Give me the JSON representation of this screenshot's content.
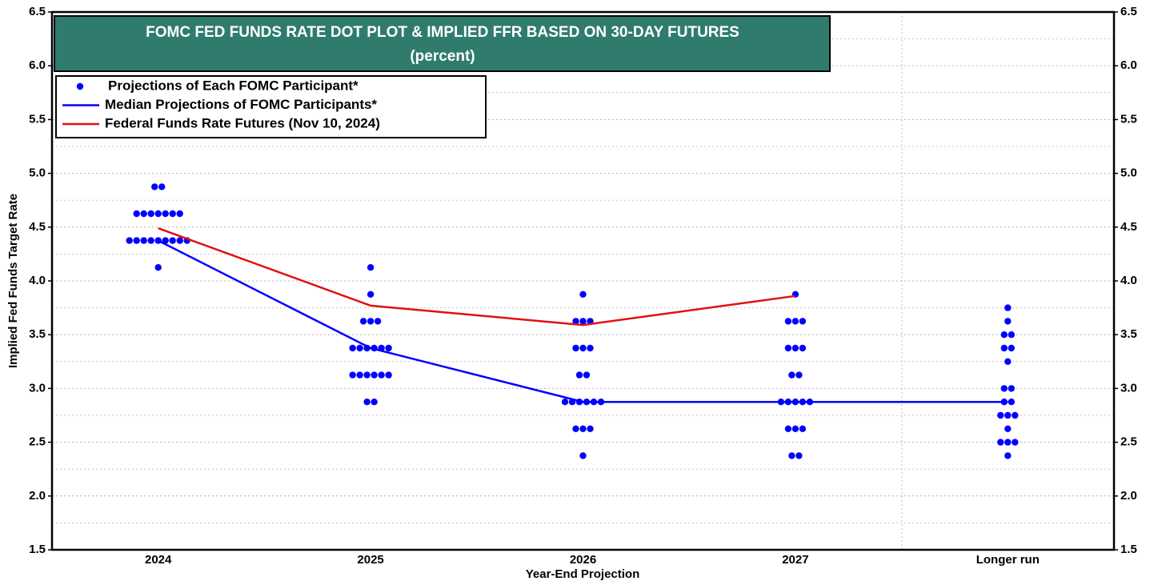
{
  "chart_data": {
    "type": "dot-plot",
    "title": "FOMC FED FUNDS RATE DOT PLOT & IMPLIED FFR BASED ON 30-DAY FUTURES",
    "subtitle": "(percent)",
    "xlabel": "Year-End Projection",
    "ylabel": "Implied Fed Funds Target Rate",
    "categories": [
      "2024",
      "2025",
      "2026",
      "2027",
      "Longer run"
    ],
    "series": [
      {
        "name": "Projections of Each FOMC Participant*",
        "type": "dots",
        "color": "#0000ff",
        "values": [
          [
            4.875,
            4.875,
            4.625,
            4.625,
            4.625,
            4.625,
            4.625,
            4.625,
            4.625,
            4.375,
            4.375,
            4.375,
            4.375,
            4.375,
            4.375,
            4.375,
            4.375,
            4.375,
            4.125
          ],
          [
            4.125,
            3.875,
            3.625,
            3.625,
            3.625,
            3.375,
            3.375,
            3.375,
            3.375,
            3.375,
            3.375,
            3.125,
            3.125,
            3.125,
            3.125,
            3.125,
            3.125,
            2.875,
            2.875
          ],
          [
            3.875,
            3.625,
            3.625,
            3.625,
            3.375,
            3.375,
            3.375,
            3.125,
            3.125,
            2.875,
            2.875,
            2.875,
            2.875,
            2.875,
            2.875,
            2.625,
            2.625,
            2.625,
            2.375
          ],
          [
            3.875,
            3.625,
            3.625,
            3.625,
            3.375,
            3.375,
            3.375,
            3.125,
            3.125,
            2.875,
            2.875,
            2.875,
            2.875,
            2.875,
            2.625,
            2.625,
            2.625,
            2.375,
            2.375
          ],
          [
            3.75,
            3.625,
            3.5,
            3.5,
            3.375,
            3.375,
            3.25,
            3.0,
            3.0,
            2.875,
            2.875,
            2.75,
            2.75,
            2.75,
            2.625,
            2.5,
            2.5,
            2.5,
            2.375
          ]
        ]
      },
      {
        "name": "Median Projections of FOMC Participants*",
        "type": "line",
        "color": "#0000ff",
        "values": [
          4.375,
          3.375,
          2.875,
          2.875,
          2.875
        ]
      },
      {
        "name": "Federal Funds Rate Futures (Nov 10, 2024)",
        "type": "line",
        "color": "#e01010",
        "values": [
          4.49,
          3.77,
          3.59,
          3.86,
          null
        ]
      }
    ],
    "ylim": [
      1.5,
      6.5
    ],
    "yticks": [
      1.5,
      {
        "value": 2,
        "label": "2.0"
      },
      2.5,
      {
        "value": 3,
        "label": "3.0"
      },
      3.5,
      {
        "value": 4,
        "label": "4.0"
      },
      4.5,
      {
        "value": 5,
        "label": "5.0"
      },
      5.5,
      {
        "value": 6,
        "label": "6.0"
      },
      6.5
    ],
    "y2lim": [
      1.5,
      6.5
    ],
    "y2ticks": [
      1.5,
      {
        "value": 2,
        "label": "2.0"
      },
      2.5,
      {
        "value": 3,
        "label": "3.0"
      },
      3.5,
      {
        "value": 4,
        "label": "4.0"
      },
      4.5,
      {
        "value": 5,
        "label": "5.0"
      },
      5.5,
      {
        "value": 6,
        "label": "6.0"
      },
      6.5
    ],
    "yminorticks": [
      1.75,
      2.25,
      2.75,
      3.25,
      3.75,
      4.25,
      4.75,
      5.25,
      5.75,
      6.25
    ],
    "grid": true
  }
}
